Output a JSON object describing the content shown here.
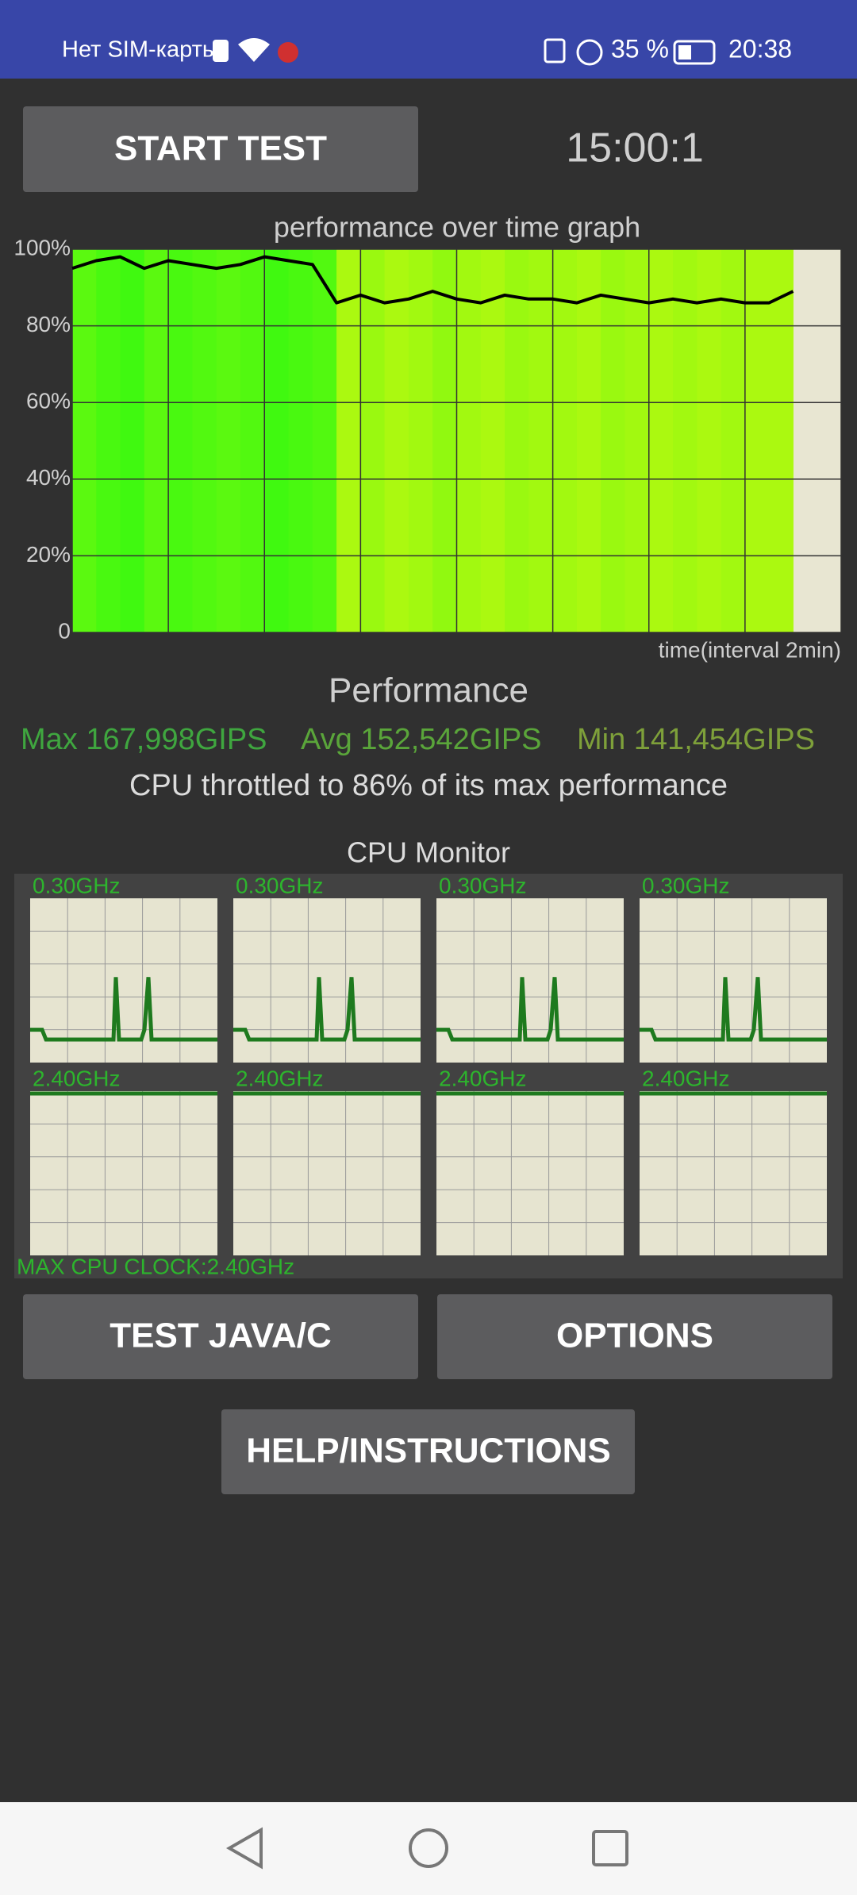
{
  "status_bar": {
    "carrier": "Нет SIM-карты",
    "battery": "35 %",
    "time": "20:38"
  },
  "buttons": {
    "start_test": "START TEST",
    "test_java_c": "TEST JAVA/C",
    "options": "OPTIONS",
    "help": "HELP/INSTRUCTIONS"
  },
  "timer": "15:00:1",
  "chart_data": {
    "type": "line",
    "title": "performance over time graph",
    "x_label": "time(interval 2min)",
    "x": [
      0,
      0.5,
      1,
      1.5,
      2,
      2.5,
      3,
      3.5,
      4,
      4.5,
      5,
      5.5,
      6,
      6.5,
      7,
      7.5,
      8,
      8.5,
      9,
      9.5,
      10,
      10.5,
      11,
      11.5,
      12,
      12.5,
      13,
      13.5,
      14,
      14.5,
      15
    ],
    "values": [
      95,
      97,
      98,
      95,
      97,
      96,
      95,
      96,
      98,
      97,
      96,
      86,
      88,
      86,
      87,
      89,
      87,
      86,
      88,
      87,
      87,
      86,
      88,
      87,
      86,
      87,
      86,
      87,
      86,
      86,
      89
    ],
    "color": "#000000",
    "xlim": [
      0,
      16
    ],
    "xticks": [
      0,
      2,
      4,
      6,
      8,
      10,
      12,
      14,
      16
    ],
    "ylim": [
      0,
      100
    ],
    "yticks": [
      0,
      {
        "value": 20,
        "label": "20%"
      },
      {
        "value": 40,
        "label": "40%"
      },
      {
        "value": 60,
        "label": "60%"
      },
      {
        "value": 80,
        "label": "80%"
      },
      {
        "value": 100,
        "label": "100%"
      }
    ],
    "grid": true
  },
  "performance": {
    "title": "Performance",
    "max": "Max 167,998GIPS",
    "avg": "Avg 152,542GIPS",
    "min": "Min 141,454GIPS",
    "throttle": "CPU throttled to 86% of its max performance"
  },
  "cpu_monitor": {
    "title": "CPU Monitor",
    "cores": [
      "0.30GHz",
      "0.30GHz",
      "0.30GHz",
      "0.30GHz",
      "2.40GHz",
      "2.40GHz",
      "2.40GHz",
      "2.40GHz"
    ],
    "max_clock": "MAX CPU CLOCK:2.40GHz"
  }
}
